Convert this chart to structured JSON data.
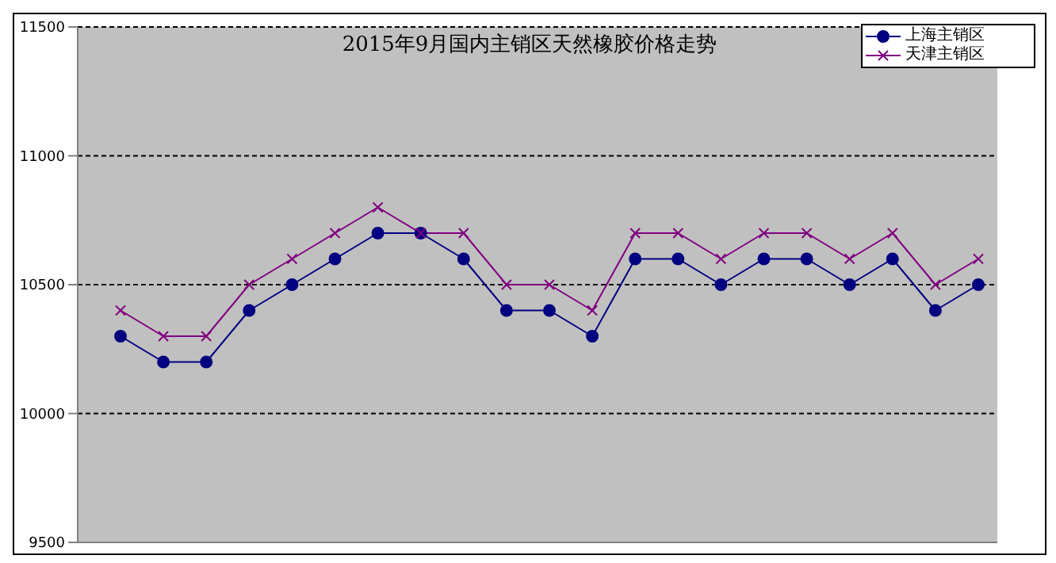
{
  "chart_data": {
    "type": "line",
    "title": "2015年9月国内主销区天然橡胶价格走势",
    "categories": [
      null,
      null,
      null,
      null,
      null,
      null,
      null,
      null,
      null,
      null,
      null,
      null,
      null,
      null,
      null,
      null,
      null,
      null,
      null,
      null,
      null
    ],
    "series": [
      {
        "name": "上海主销区",
        "color": "#000080",
        "marker": "circle",
        "values": [
          10300,
          10200,
          10200,
          10400,
          10500,
          10600,
          10700,
          10700,
          10600,
          10400,
          10400,
          10300,
          10600,
          10600,
          10500,
          10600,
          10600,
          10500,
          10600,
          10400,
          10500
        ]
      },
      {
        "name": "天津主销区",
        "color": "#800080",
        "marker": "cross",
        "values": [
          10400,
          10300,
          10300,
          10500,
          10600,
          10700,
          10800,
          10700,
          10700,
          10500,
          10500,
          10400,
          10700,
          10700,
          10600,
          10700,
          10700,
          10600,
          10700,
          10500,
          10600
        ]
      }
    ],
    "ylim": [
      9500,
      11500
    ],
    "yticks": [
      9500,
      10000,
      10500,
      11000,
      11500
    ],
    "grid": "y",
    "legend": "top right",
    "tick_labels": "y"
  }
}
